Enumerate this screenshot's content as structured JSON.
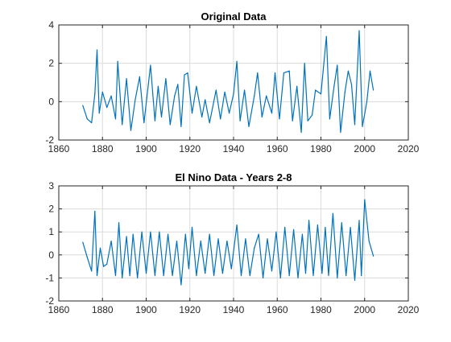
{
  "chart_data": [
    {
      "type": "line",
      "title": "Original Data",
      "xlabel": "",
      "ylabel": "",
      "xlim": [
        1860,
        2020
      ],
      "ylim": [
        -2,
        4
      ],
      "xticks": [
        1860,
        1880,
        1900,
        1920,
        1940,
        1960,
        1980,
        2000,
        2020
      ],
      "yticks": [
        -2,
        0,
        2,
        4
      ],
      "grid": true,
      "series": [
        {
          "color": "#0072BD",
          "x": [
            1871,
            1873,
            1875,
            1876.5,
            1877.5,
            1878.5,
            1880,
            1882,
            1884,
            1886,
            1887,
            1889,
            1891,
            1893,
            1895,
            1897,
            1899,
            1902,
            1904,
            1905.5,
            1907,
            1909,
            1911,
            1913,
            1914.5,
            1916,
            1917.5,
            1919,
            1921,
            1923,
            1925.5,
            1927,
            1929,
            1932,
            1934,
            1936,
            1938,
            1940,
            1941.5,
            1943,
            1945,
            1947,
            1949.5,
            1951,
            1953,
            1955,
            1957.5,
            1959,
            1961,
            1963,
            1965.5,
            1967,
            1969,
            1971,
            1972.5,
            1974,
            1976,
            1977.5,
            1980,
            1982.5,
            1984,
            1986,
            1987.5,
            1989,
            1991,
            1992.5,
            1994,
            1995.5,
            1997.5,
            1999,
            2001,
            2002.5,
            2004
          ],
          "y": [
            -0.2,
            -0.9,
            -1.1,
            0.4,
            2.7,
            -0.6,
            0.5,
            -0.3,
            0.3,
            -0.9,
            2.1,
            -1.2,
            1.2,
            -1.5,
            0.1,
            1.3,
            -1.1,
            1.9,
            -1.0,
            0.8,
            -0.8,
            1.2,
            -1.2,
            0.3,
            0.9,
            -1.3,
            1.4,
            1.5,
            -0.6,
            0.8,
            -0.8,
            0.1,
            -1.1,
            0.6,
            -0.9,
            0.5,
            -0.6,
            0.4,
            2.1,
            -1.0,
            0.6,
            -1.3,
            0.3,
            1.5,
            -0.8,
            0.3,
            -0.6,
            1.5,
            -0.9,
            1.5,
            1.6,
            -1.0,
            0.8,
            -1.6,
            2.0,
            -1.0,
            -0.7,
            0.6,
            0.4,
            3.4,
            -0.9,
            0.8,
            1.9,
            -1.6,
            0.5,
            1.6,
            0.9,
            -1.2,
            3.7,
            -1.3,
            0.0,
            1.6,
            0.6
          ]
        }
      ]
    },
    {
      "type": "line",
      "title": "El Nino Data - Years 2-8",
      "xlabel": "",
      "ylabel": "",
      "xlim": [
        1860,
        2020
      ],
      "ylim": [
        -2,
        3
      ],
      "xticks": [
        1860,
        1880,
        1900,
        1920,
        1940,
        1960,
        1980,
        2000,
        2020
      ],
      "yticks": [
        -2,
        -1,
        0,
        1,
        2,
        3
      ],
      "grid": true,
      "series": [
        {
          "color": "#0072BD",
          "x": [
            1871,
            1873,
            1875,
            1876.5,
            1877.5,
            1879,
            1880.5,
            1882,
            1884,
            1886,
            1887.5,
            1889,
            1891,
            1892.5,
            1894,
            1896,
            1898,
            1900,
            1902,
            1904,
            1906,
            1908,
            1910,
            1912,
            1914,
            1916,
            1918,
            1919.5,
            1921,
            1923,
            1925,
            1927,
            1929,
            1931,
            1933,
            1935,
            1937,
            1939,
            1941.5,
            1943.5,
            1945.5,
            1947.5,
            1949.5,
            1951.5,
            1953.5,
            1955.5,
            1957.5,
            1959.5,
            1961.5,
            1963.5,
            1965.5,
            1967.5,
            1969.5,
            1971.5,
            1973,
            1974.5,
            1976.5,
            1978.5,
            1980.5,
            1982,
            1983.5,
            1985.5,
            1987.5,
            1989.5,
            1991.5,
            1993.5,
            1995.5,
            1997.5,
            1998.5,
            2000,
            2002,
            2004
          ],
          "y": [
            0.55,
            -0.1,
            -0.7,
            1.9,
            -0.9,
            0.3,
            -0.5,
            -0.4,
            0.6,
            -0.9,
            1.4,
            -1.0,
            0.8,
            -0.9,
            0.9,
            -1.0,
            1.0,
            -0.8,
            1.0,
            -0.9,
            1.0,
            -0.9,
            0.9,
            -0.9,
            0.6,
            -1.3,
            0.9,
            -0.6,
            1.2,
            -0.9,
            0.6,
            -0.8,
            0.9,
            -0.9,
            0.7,
            -0.8,
            0.6,
            -0.6,
            1.3,
            -0.9,
            0.7,
            -0.9,
            0.3,
            0.9,
            -1.0,
            0.7,
            -0.7,
            1.0,
            -1.0,
            1.2,
            -0.9,
            1.1,
            -1.0,
            0.9,
            -0.8,
            1.5,
            -0.9,
            1.3,
            -0.8,
            1.2,
            -0.9,
            1.8,
            -1.0,
            1.4,
            -0.9,
            1.2,
            -1.1,
            1.5,
            -0.9,
            2.4,
            0.6,
            -0.05
          ]
        }
      ]
    }
  ]
}
